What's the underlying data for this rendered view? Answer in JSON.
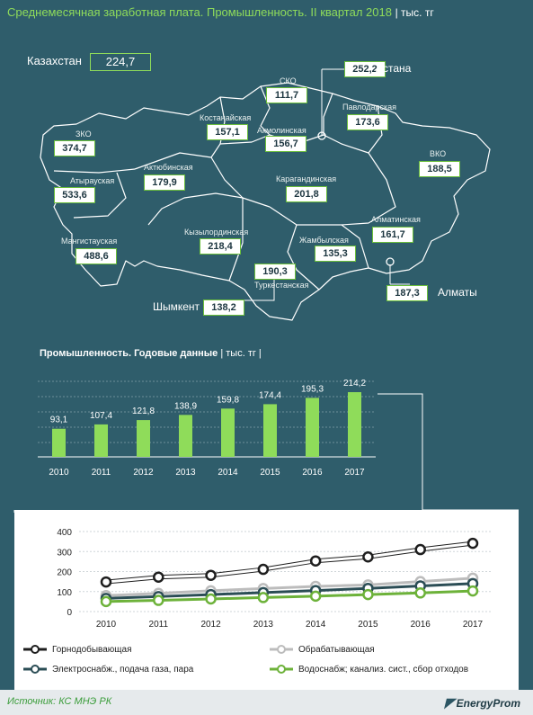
{
  "title": "Среднемесячная заработная плата. Промышленность. II квартал 2018",
  "title_unit": "| тыс. тг",
  "kazakhstan": {
    "label": "Казахстан",
    "value": "224,7"
  },
  "regions": [
    {
      "name": "ЗКО",
      "value": "374,7"
    },
    {
      "name": "Атырауская",
      "value": "533,6"
    },
    {
      "name": "Мангистауская",
      "value": "488,6"
    },
    {
      "name": "Актюбинская",
      "value": "179,9"
    },
    {
      "name": "Костанайская",
      "value": "157,1"
    },
    {
      "name": "СКО",
      "value": "111,7"
    },
    {
      "name": "Акмолинская",
      "value": "156,7"
    },
    {
      "name": "Павлодарская",
      "value": "173,6"
    },
    {
      "name": "ВКО",
      "value": "188,5"
    },
    {
      "name": "Карагандинская",
      "value": "201,8"
    },
    {
      "name": "Кызылординская",
      "value": "218,4"
    },
    {
      "name": "Жамбылская",
      "value": "135,3"
    },
    {
      "name": "Алматинская",
      "value": "161,7"
    },
    {
      "name": "Туркестанская",
      "value": "190,3"
    }
  ],
  "cities": [
    {
      "name": "Астана",
      "value": "252,2"
    },
    {
      "name": "Алматы",
      "value": "187,3"
    },
    {
      "name": "Шымкент",
      "value": "138,2"
    }
  ],
  "colors": {
    "background": "#2f5d6b",
    "accent": "#8fdc5a",
    "bar": "#8fdc5a"
  },
  "chart_data": [
    {
      "type": "bar",
      "title": "Промышленность.  Годовые данные",
      "unit": "| тыс. тг |",
      "categories": [
        "2010",
        "2011",
        "2012",
        "2013",
        "2014",
        "2015",
        "2016",
        "2017"
      ],
      "values": [
        93.1,
        107.4,
        121.8,
        138.9,
        159.8,
        174.4,
        195.3,
        214.2
      ],
      "value_labels": [
        "93,1",
        "107,4",
        "121,8",
        "138,9",
        "159,8",
        "174,4",
        "195,3",
        "214,2"
      ],
      "ylim": [
        0,
        250
      ],
      "grid": true
    },
    {
      "type": "line",
      "x": [
        "2010",
        "2011",
        "2012",
        "2013",
        "2014",
        "2015",
        "2016",
        "2017"
      ],
      "ylim": [
        0,
        400
      ],
      "yticks": [
        "0",
        "100",
        "200",
        "300",
        "400"
      ],
      "grid": true,
      "legend": "bottom",
      "series": [
        {
          "name": "Горнодобывающая",
          "color": "#ffffff",
          "values": [
            148,
            172,
            181,
            211,
            253,
            273,
            310,
            341
          ]
        },
        {
          "name": "Обрабатывающая",
          "color": "#bcbcbc",
          "values": [
            80,
            91,
            104,
            115,
            126,
            133,
            150,
            167
          ]
        },
        {
          "name": "Электроснабж., подача газа, пара",
          "color": "#2b4d55",
          "values": [
            66,
            75,
            85,
            95,
            105,
            116,
            128,
            140
          ]
        },
        {
          "name": "Водоснабж; канализ. сист., сбор отходов",
          "color": "#6db23a",
          "values": [
            50,
            56,
            63,
            70,
            77,
            85,
            93,
            103
          ]
        }
      ]
    }
  ],
  "source": "Источник: КС МНЭ РК",
  "brand": "EnergyProm"
}
